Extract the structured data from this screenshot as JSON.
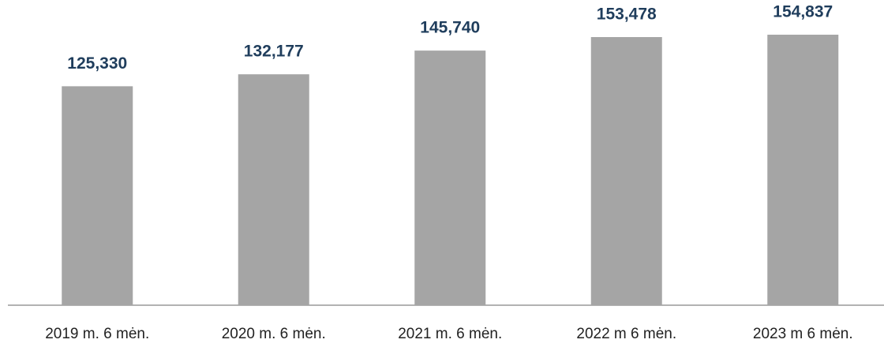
{
  "chart_data": {
    "type": "bar",
    "categories": [
      "2019 m. 6 mėn.",
      "2020 m. 6 mėn.",
      "2021 m. 6 mėn.",
      "2022 m 6 mėn.",
      "2023 m 6 mėn."
    ],
    "values": [
      125330,
      132177,
      145740,
      153478,
      154837
    ],
    "value_labels": [
      "125,330",
      "132,177",
      "145,740",
      "153,478",
      "154,837"
    ],
    "color": "#a5a5a5"
  }
}
